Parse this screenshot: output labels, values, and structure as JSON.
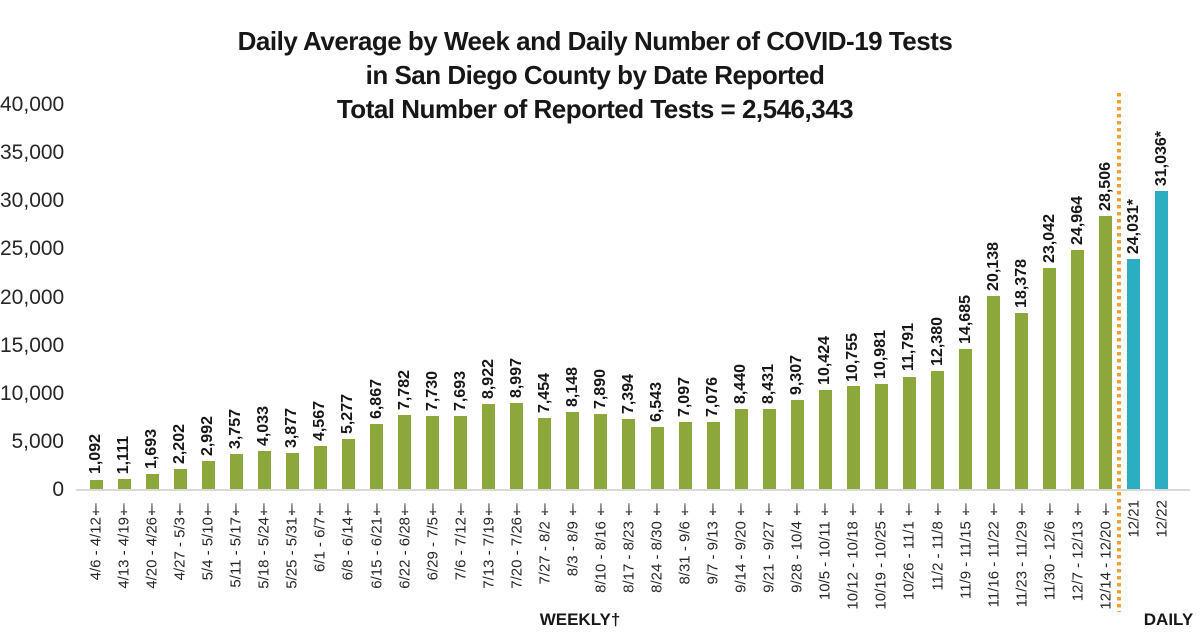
{
  "title": {
    "line1": "Daily Average by Week and Daily Number of COVID-19 Tests",
    "line2": "in San Diego County by Date Reported",
    "line3": "Total Number of Reported Tests = 2,546,343"
  },
  "axis": {
    "weekly_label": "WEEKLY†",
    "daily_label": "DAILY",
    "y_ticks": [
      "0",
      "5,000",
      "10,000",
      "15,000",
      "20,000",
      "25,000",
      "30,000",
      "35,000",
      "40,000"
    ]
  },
  "colors": {
    "weekly_bar": "#8CA83C",
    "daily_bar": "#2BAEC2",
    "divider_dotted_line": "#EDA03C",
    "axis_line": "#D9D9D9",
    "text": "#1A1A1A"
  },
  "chart_data": {
    "type": "bar",
    "title": "Daily Average by Week and Daily Number of COVID-19 Tests in San Diego County by Date Reported",
    "subtitle": "Total Number of Reported Tests = 2,546,343",
    "xlabel": "",
    "ylabel": "",
    "ylim": [
      0,
      40000
    ],
    "y_tick_step": 5000,
    "grid": false,
    "legend_position": "none",
    "divider_note": "orange dotted vertical line separates WEEKLY† averages from DAILY counts",
    "daily_start_index": 37,
    "categories": [
      "4/6 - 4/12†",
      "4/13 - 4/19†",
      "4/20 - 4/26†",
      "4/27 - 5/3†",
      "5/4 - 5/10†",
      "5/11 - 5/17†",
      "5/18 - 5/24†",
      "5/25 - 5/31†",
      "6/1 - 6/7†",
      "6/8 - 6/14†",
      "6/15 - 6/21†",
      "6/22 - 6/28†",
      "6/29 - 7/5†",
      "7/6 - 7/12†",
      "7/13 - 7/19†",
      "7/20 - 7/26†",
      "7/27 - 8/2 †",
      "8/3 - 8/9 †",
      "8/10 - 8/16 †",
      "8/17 - 8/23 †",
      "8/24 - 8/30 †",
      "8/31 - 9/6 †",
      "9/7 - 9/13 †",
      "9/14 - 9/20 †",
      "9/21 - 9/27 †",
      "9/28 - 10/4 †",
      "10/5 - 10/11 †",
      "10/12 - 10/18 †",
      "10/19 - 10/25 †",
      "10/26 - 11/1 †",
      "11/2 - 11/8 †",
      "11/9 - 11/15 †",
      "11/16 - 11/22 †",
      "11/23 - 11/29 †",
      "11/30 - 12/6 †",
      "12/7 - 12/13 †",
      "12/14 - 12/20 †",
      "12/21",
      "12/22"
    ],
    "values": [
      1092,
      1111,
      1693,
      2202,
      2992,
      3757,
      4033,
      3877,
      4567,
      5277,
      6867,
      7782,
      7730,
      7693,
      8922,
      8997,
      7454,
      8148,
      7890,
      7394,
      6543,
      7097,
      7076,
      8440,
      8431,
      9307,
      10424,
      10755,
      10981,
      11791,
      12380,
      14685,
      20138,
      18378,
      23042,
      24964,
      28506,
      24031,
      31036
    ],
    "value_labels": [
      "1,092",
      "1,111",
      "1,693",
      "2,202",
      "2,992",
      "3,757",
      "4,033",
      "3,877",
      "4,567",
      "5,277",
      "6,867",
      "7,782",
      "7,730",
      "7,693",
      "8,922",
      "8,997",
      "7,454",
      "8,148",
      "7,890",
      "7,394",
      "6,543",
      "7,097",
      "7,076",
      "8,440",
      "8,431",
      "9,307",
      "10,424",
      "10,755",
      "10,981",
      "11,791",
      "12,380",
      "14,685",
      "20,138",
      "18,378",
      "23,042",
      "24,964",
      "28,506",
      "24,031*",
      "31,036*"
    ]
  }
}
